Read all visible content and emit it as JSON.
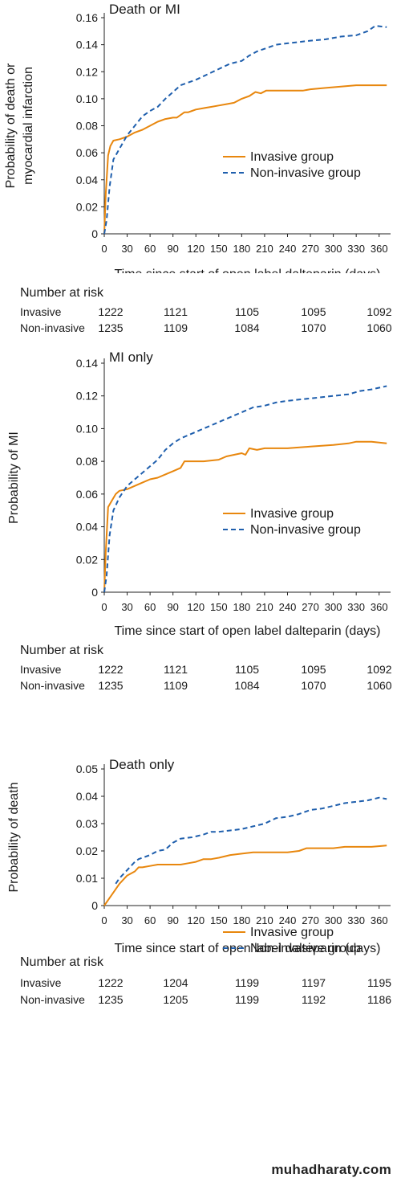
{
  "chart_data": [
    {
      "type": "line",
      "title": "Death or MI",
      "ylabel": "Probability of death or myocardial infarction",
      "xlabel": "Time since start of open label dalteparin (days)",
      "xlim": [
        0,
        375
      ],
      "ylim": [
        0,
        0.16
      ],
      "xticks": [
        0,
        30,
        60,
        90,
        120,
        150,
        180,
        210,
        240,
        270,
        300,
        330,
        360
      ],
      "yticks": [
        0,
        0.02,
        0.04,
        0.06,
        0.08,
        0.1,
        0.12,
        0.14,
        0.16
      ],
      "ytick_labels": [
        "0",
        "0.02",
        "0.04",
        "0.06",
        "0.08",
        "0.10",
        "0.12",
        "0.14",
        "0.16"
      ],
      "legend": "center-right",
      "grid": false,
      "series": [
        {
          "name": "Invasive group",
          "color": "#E8870E",
          "style": "solid",
          "x": [
            0,
            2,
            5,
            8,
            12,
            20,
            30,
            40,
            50,
            60,
            70,
            80,
            90,
            95,
            100,
            105,
            110,
            115,
            120,
            130,
            140,
            150,
            160,
            170,
            180,
            190,
            198,
            205,
            212,
            220,
            240,
            260,
            270,
            290,
            310,
            330,
            350,
            370
          ],
          "y": [
            0,
            0.03,
            0.058,
            0.065,
            0.069,
            0.07,
            0.072,
            0.075,
            0.077,
            0.08,
            0.083,
            0.085,
            0.086,
            0.086,
            0.088,
            0.09,
            0.09,
            0.091,
            0.092,
            0.093,
            0.094,
            0.095,
            0.096,
            0.097,
            0.1,
            0.102,
            0.105,
            0.104,
            0.106,
            0.106,
            0.106,
            0.106,
            0.107,
            0.108,
            0.109,
            0.11,
            0.11,
            0.11
          ]
        },
        {
          "name": "Non-invasive group",
          "color": "#1F5FAD",
          "style": "dashed",
          "x": [
            0,
            3,
            7,
            12,
            20,
            30,
            40,
            50,
            60,
            70,
            80,
            90,
            100,
            110,
            120,
            135,
            150,
            165,
            180,
            190,
            200,
            210,
            225,
            240,
            255,
            270,
            290,
            310,
            330,
            345,
            355,
            370
          ],
          "y": [
            0,
            0.01,
            0.035,
            0.055,
            0.063,
            0.073,
            0.08,
            0.087,
            0.091,
            0.094,
            0.1,
            0.105,
            0.11,
            0.112,
            0.114,
            0.118,
            0.122,
            0.126,
            0.128,
            0.132,
            0.135,
            0.137,
            0.14,
            0.141,
            0.142,
            0.143,
            0.144,
            0.146,
            0.147,
            0.15,
            0.154,
            0.153
          ]
        }
      ]
    },
    {
      "type": "line",
      "title": "MI only",
      "ylabel": "Probability of MI",
      "xlabel": "Time since start of open label dalteparin (days)",
      "xlim": [
        0,
        375
      ],
      "ylim": [
        0,
        0.14
      ],
      "xticks": [
        0,
        30,
        60,
        90,
        120,
        150,
        180,
        210,
        240,
        270,
        300,
        330,
        360
      ],
      "yticks": [
        0,
        0.02,
        0.04,
        0.06,
        0.08,
        0.1,
        0.12,
        0.14
      ],
      "ytick_labels": [
        "0",
        "0.02",
        "0.04",
        "0.06",
        "0.08",
        "0.10",
        "0.12",
        "0.14"
      ],
      "legend": "center-right",
      "grid": false,
      "series": [
        {
          "name": "Invasive group",
          "color": "#E8870E",
          "style": "solid",
          "x": [
            0,
            2,
            5,
            10,
            15,
            20,
            30,
            40,
            50,
            60,
            70,
            80,
            90,
            100,
            105,
            115,
            130,
            150,
            160,
            170,
            180,
            185,
            190,
            200,
            210,
            240,
            270,
            300,
            320,
            330,
            350,
            370
          ],
          "y": [
            0,
            0.025,
            0.052,
            0.056,
            0.06,
            0.062,
            0.063,
            0.065,
            0.067,
            0.069,
            0.07,
            0.072,
            0.074,
            0.076,
            0.08,
            0.08,
            0.08,
            0.081,
            0.083,
            0.084,
            0.085,
            0.084,
            0.088,
            0.087,
            0.088,
            0.088,
            0.089,
            0.09,
            0.091,
            0.092,
            0.092,
            0.091
          ]
        },
        {
          "name": "Non-invasive group",
          "color": "#1F5FAD",
          "style": "dashed",
          "x": [
            0,
            3,
            7,
            12,
            20,
            30,
            40,
            50,
            60,
            70,
            80,
            90,
            100,
            110,
            120,
            135,
            150,
            165,
            180,
            195,
            210,
            225,
            240,
            260,
            280,
            300,
            320,
            335,
            350,
            370
          ],
          "y": [
            0,
            0.01,
            0.035,
            0.05,
            0.058,
            0.065,
            0.069,
            0.073,
            0.077,
            0.081,
            0.087,
            0.091,
            0.094,
            0.096,
            0.098,
            0.101,
            0.104,
            0.107,
            0.11,
            0.113,
            0.114,
            0.116,
            0.117,
            0.118,
            0.119,
            0.12,
            0.121,
            0.123,
            0.124,
            0.126
          ]
        }
      ]
    },
    {
      "type": "line",
      "title": "Death only",
      "ylabel": "Probability of death",
      "xlabel": "Time since start of open label dalteparin (days)",
      "xlim": [
        0,
        375
      ],
      "ylim": [
        0,
        0.05
      ],
      "xticks": [
        0,
        30,
        60,
        90,
        120,
        150,
        180,
        210,
        240,
        270,
        300,
        330,
        360
      ],
      "yticks": [
        0,
        0.01,
        0.02,
        0.03,
        0.04,
        0.05
      ],
      "ytick_labels": [
        "0",
        "0.01",
        "0.02",
        "0.03",
        "0.04",
        "0.05"
      ],
      "legend": "center-right",
      "grid": false,
      "series": [
        {
          "name": "Invasive group",
          "color": "#E8870E",
          "style": "solid",
          "x": [
            0,
            10,
            20,
            30,
            40,
            45,
            50,
            60,
            70,
            80,
            90,
            100,
            110,
            120,
            130,
            140,
            150,
            165,
            180,
            195,
            210,
            240,
            255,
            265,
            280,
            300,
            315,
            330,
            350,
            370
          ],
          "y": [
            0,
            0.004,
            0.008,
            0.011,
            0.0125,
            0.014,
            0.014,
            0.0145,
            0.015,
            0.015,
            0.015,
            0.015,
            0.0155,
            0.016,
            0.017,
            0.017,
            0.0175,
            0.0185,
            0.019,
            0.0195,
            0.0195,
            0.0195,
            0.02,
            0.021,
            0.021,
            0.021,
            0.0215,
            0.0215,
            0.0215,
            0.022
          ]
        },
        {
          "name": "Non-invasive group",
          "color": "#1F5FAD",
          "style": "dashed",
          "x": [
            15,
            20,
            30,
            40,
            45,
            50,
            60,
            70,
            80,
            90,
            100,
            115,
            130,
            140,
            150,
            165,
            180,
            195,
            210,
            225,
            240,
            255,
            270,
            285,
            300,
            315,
            330,
            345,
            360,
            370
          ],
          "y": [
            0.008,
            0.01,
            0.013,
            0.016,
            0.017,
            0.0175,
            0.0185,
            0.02,
            0.0205,
            0.023,
            0.0245,
            0.025,
            0.026,
            0.027,
            0.027,
            0.0275,
            0.028,
            0.029,
            0.03,
            0.032,
            0.0325,
            0.0335,
            0.035,
            0.0355,
            0.0365,
            0.0375,
            0.038,
            0.0385,
            0.0395,
            0.039
          ]
        }
      ]
    }
  ],
  "risk_tables": [
    {
      "title": "Number at risk",
      "rows": [
        {
          "label": "Invasive",
          "values": [
            "1222",
            "1121",
            "1105",
            "1095",
            "1092"
          ]
        },
        {
          "label": "Non-invasive",
          "values": [
            "1235",
            "1109",
            "1084",
            "1070",
            "1060"
          ]
        }
      ]
    },
    {
      "title": "Number at risk",
      "rows": [
        {
          "label": "Invasive",
          "values": [
            "1222",
            "1121",
            "1105",
            "1095",
            "1092"
          ]
        },
        {
          "label": "Non-invasive",
          "values": [
            "1235",
            "1109",
            "1084",
            "1070",
            "1060"
          ]
        }
      ]
    },
    {
      "title": "Number at risk",
      "rows": [
        {
          "label": "Invasive",
          "values": [
            "1222",
            "1204",
            "1199",
            "1197",
            "1195"
          ]
        },
        {
          "label": "Non-invasive",
          "values": [
            "1235",
            "1205",
            "1199",
            "1192",
            "1186"
          ]
        }
      ]
    }
  ],
  "watermark": "muhadharaty.com"
}
